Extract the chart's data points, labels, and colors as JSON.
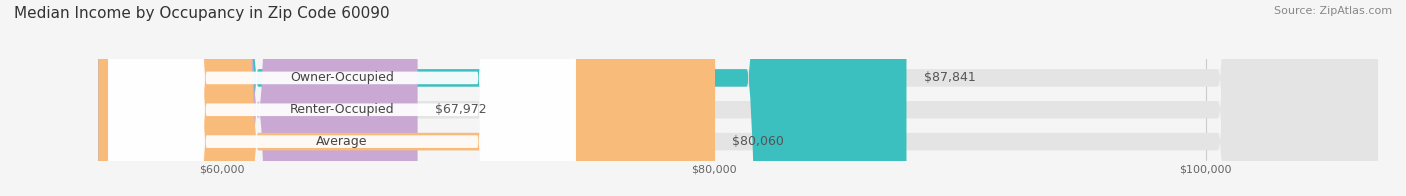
{
  "title": "Median Income by Occupancy in Zip Code 60090",
  "source": "Source: ZipAtlas.com",
  "categories": [
    "Owner-Occupied",
    "Renter-Occupied",
    "Average"
  ],
  "values": [
    87841,
    67972,
    80060
  ],
  "bar_colors": [
    "#3bbfbf",
    "#c9a8d4",
    "#f9bb7a"
  ],
  "value_labels": [
    "$87,841",
    "$67,972",
    "$80,060"
  ],
  "xlim_min": 55000,
  "xlim_max": 107000,
  "xticks": [
    60000,
    80000,
    100000
  ],
  "xticklabels": [
    "$60,000",
    "$80,000",
    "$100,000"
  ],
  "background_color": "#f5f5f5",
  "bar_bg_color": "#e4e4e4",
  "title_fontsize": 11,
  "source_fontsize": 8,
  "label_fontsize": 9,
  "value_fontsize": 9,
  "bar_height": 0.55
}
